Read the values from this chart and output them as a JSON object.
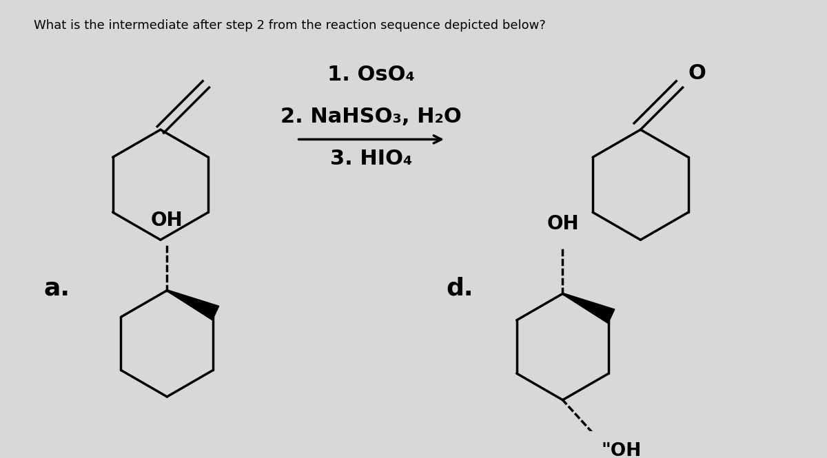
{
  "background_color": "#d8d8d8",
  "question_text": "What is the intermediate after step 2 from the reaction sequence depicted below?",
  "step1": "1. OsO₄",
  "step2": "2. NaHSO₃, H₂O",
  "step3": "3. HIO₄",
  "label_a": "a.",
  "label_d": "d.",
  "line_color": "#000000",
  "text_color": "#000000",
  "question_fontsize": 13,
  "step_fontsize": 22,
  "label_fontsize": 26
}
